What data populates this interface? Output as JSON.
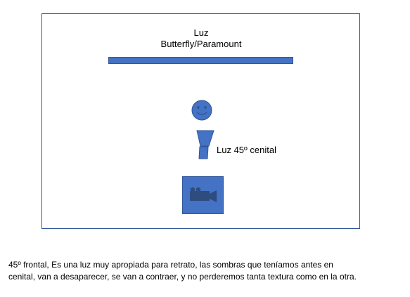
{
  "diagram": {
    "light_title_line1": "Luz",
    "light_title_line2": "Butterfly/Paramount",
    "side_light_label": "Luz 45º cenital"
  },
  "caption": {
    "line1": "45º frontal, Es una luz muy apropiada para retrato, las sombras que teníamos antes en",
    "line2": "cenital, van a desaparecer, se van a contraer, y no perderemos tanta textura como en la otra."
  },
  "colors": {
    "shape_fill": "#4472C4",
    "shape_stroke": "#2F5597",
    "camera_icon": "#2E4C7E"
  },
  "icons": {
    "subject_head": "smiley-face-icon",
    "subject_body": "trapezoid-body-icon",
    "camera": "film-camera-icon"
  }
}
